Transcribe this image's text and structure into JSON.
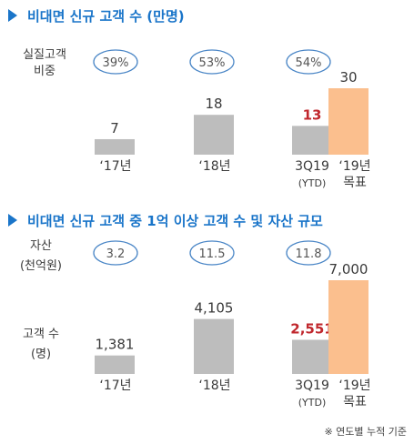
{
  "colors": {
    "accent_blue": "#1a75c9",
    "bar_gray": "#bdbdbd",
    "bar_target": "#fbbf8e",
    "highlight_red": "#c0272d",
    "text_dark": "#3a3a3a",
    "oval_border": "#4a86c6"
  },
  "chart_data": [
    {
      "type": "bar",
      "title": "비대면 신규 고객 수 (만명)",
      "ratio_label": [
        "실질고객",
        "비중"
      ],
      "ratios": [
        "39%",
        "53%",
        "54%"
      ],
      "categories": [
        [
          "‘17년"
        ],
        [
          "‘18년"
        ],
        [
          "3Q19",
          "(YTD)"
        ],
        [
          "‘19년",
          "목표"
        ]
      ],
      "values": [
        7,
        18,
        13,
        30
      ],
      "value_labels": [
        "7",
        "18",
        "13",
        "30"
      ],
      "highlight": [
        false,
        false,
        true,
        false
      ],
      "target": [
        false,
        false,
        false,
        true
      ]
    },
    {
      "type": "bar",
      "title": "비대면 신규 고객 중 1억 이상 고객 수 및 자산 규모",
      "ratio_label": [
        "자산",
        "(천억원)"
      ],
      "ratios": [
        "3.2",
        "11.5",
        "11.8"
      ],
      "ylabel": [
        "고객 수",
        "(명)"
      ],
      "categories": [
        [
          "‘17년"
        ],
        [
          "‘18년"
        ],
        [
          "3Q19",
          "(YTD)"
        ],
        [
          "‘19년",
          "목표"
        ]
      ],
      "values": [
        1381,
        4105,
        2551,
        7000
      ],
      "value_labels": [
        "1,381",
        "4,105",
        "2,551",
        "7,000"
      ],
      "highlight": [
        false,
        false,
        true,
        false
      ],
      "target": [
        false,
        false,
        false,
        true
      ]
    }
  ],
  "footnote": "※ 연도별 누적 기준"
}
